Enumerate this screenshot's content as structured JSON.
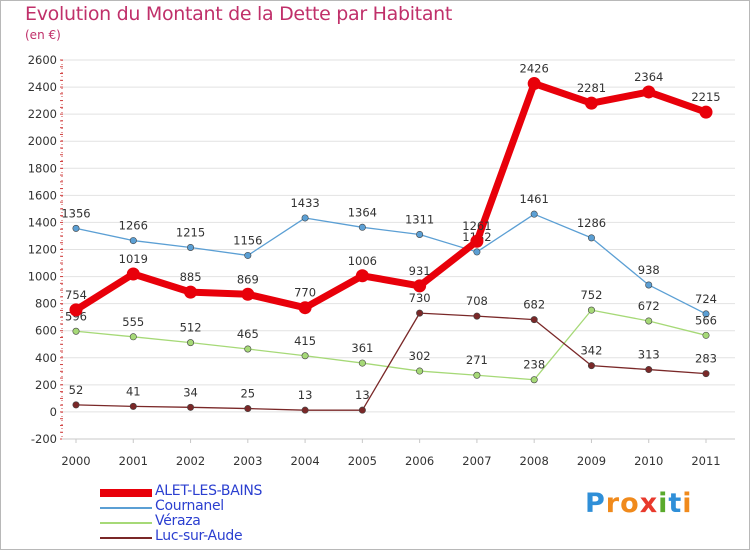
{
  "title": "Evolution du Montant de la Dette par Habitant",
  "subtitle": "(en €)",
  "logo": {
    "letters": [
      "P",
      "r",
      "o",
      "x",
      "i",
      "t",
      "i"
    ],
    "colors": [
      "#2f8fd8",
      "#f08a1c",
      "#f08a1c",
      "#e8392c",
      "#5aaa2c",
      "#2f8fd8",
      "#f08a1c"
    ]
  },
  "chart_data": {
    "type": "line",
    "title": "Evolution du Montant de la Dette par Habitant",
    "subtitle": "(en €)",
    "xlabel": "",
    "ylabel": "",
    "ylim": [
      -200,
      2600
    ],
    "yticks": [
      -200,
      0,
      200,
      400,
      600,
      800,
      1000,
      1200,
      1400,
      1600,
      1800,
      2000,
      2200,
      2400,
      2600
    ],
    "grid": "horizontal",
    "legend": "bottom-left",
    "categories": [
      "2000",
      "2001",
      "2002",
      "2003",
      "2004",
      "2005",
      "2006",
      "2007",
      "2008",
      "2009",
      "2010",
      "2011"
    ],
    "series": [
      {
        "name": "ALET-LES-BAINS",
        "color": "#e8000a",
        "values": [
          754,
          1019,
          885,
          869,
          770,
          1006,
          931,
          1261,
          2426,
          2281,
          2364,
          2215
        ],
        "labels": [
          "754",
          "1019",
          "885",
          "869",
          "770",
          "1006",
          "931",
          "1261",
          "2426",
          "2281",
          "2364",
          "2215"
        ]
      },
      {
        "name": "Cournanel",
        "color": "#5b9fd4",
        "values": [
          1356,
          1266,
          1215,
          1156,
          1433,
          1364,
          1311,
          1182,
          1461,
          1286,
          938,
          724
        ],
        "labels": [
          "1356",
          "1266",
          "1215",
          "1156",
          "1433",
          "1364",
          "1311",
          "1182",
          "1461",
          "1286",
          "938",
          "724"
        ]
      },
      {
        "name": "Véraza",
        "color": "#a6d977",
        "values": [
          596,
          555,
          512,
          465,
          415,
          361,
          302,
          271,
          238,
          752,
          672,
          566
        ],
        "labels": [
          "596",
          "555",
          "512",
          "465",
          "415",
          "361",
          "302",
          "271",
          "238",
          "752",
          "672",
          "566"
        ]
      },
      {
        "name": "Luc-sur-Aude",
        "color": "#7a2828",
        "values": [
          52,
          41,
          34,
          25,
          13,
          13,
          730,
          708,
          682,
          342,
          313,
          283
        ],
        "labels": [
          "52",
          "41",
          "34",
          "25",
          "13",
          "13",
          "730",
          "708",
          "682",
          "342",
          "313",
          "283"
        ]
      }
    ]
  }
}
